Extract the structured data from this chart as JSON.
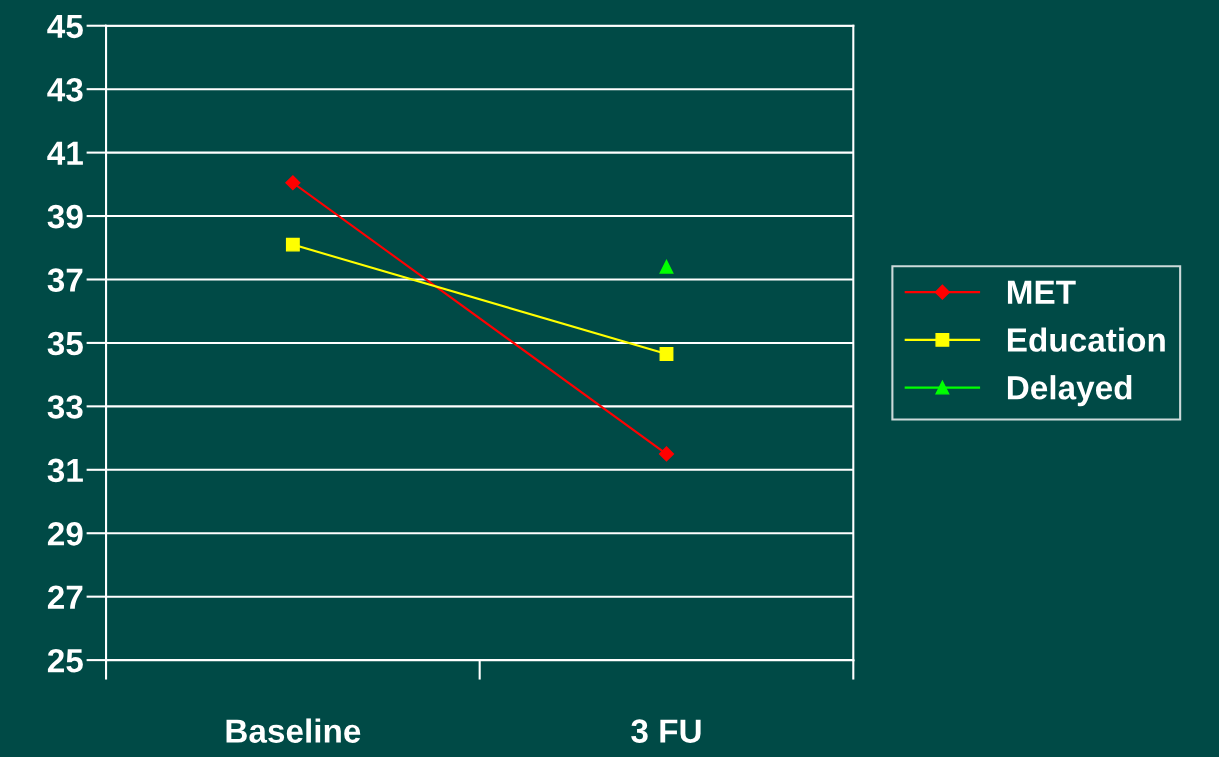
{
  "chart_data": {
    "type": "line",
    "categories": [
      "Baseline",
      "3 FU"
    ],
    "series": [
      {
        "name": "MET",
        "color": "#ff0000",
        "marker": "diamond",
        "values": [
          40.05,
          31.5
        ]
      },
      {
        "name": "Education",
        "color": "#ffff00",
        "marker": "square",
        "values": [
          38.1,
          34.65
        ]
      },
      {
        "name": "Delayed",
        "color": "#00ff00",
        "marker": "triangle",
        "values": [
          null,
          37.4
        ]
      }
    ],
    "ylim": [
      25,
      45
    ],
    "yticks": [
      25,
      27,
      29,
      31,
      33,
      35,
      37,
      39,
      41,
      43,
      45
    ],
    "grid": "y",
    "legend": "right",
    "line_style": "solid"
  }
}
